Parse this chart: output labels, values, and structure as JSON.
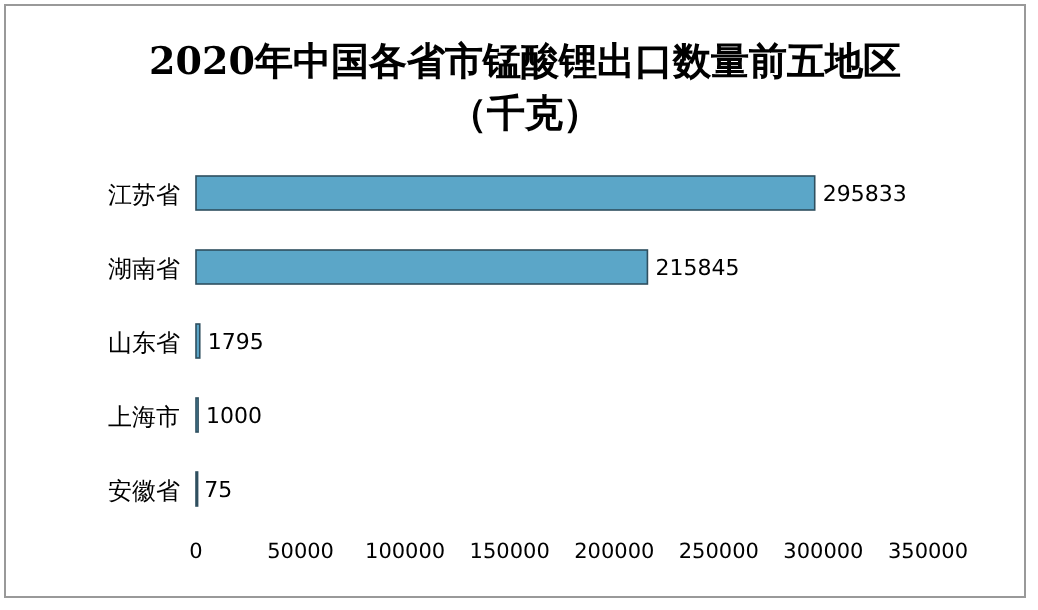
{
  "chart_data": {
    "type": "bar",
    "orientation": "horizontal",
    "title": "2020年中国各省市锰酸锂出口数量前五地区（千克）",
    "categories": [
      "江苏省",
      "湖南省",
      "山东省",
      "上海市",
      "安徽省"
    ],
    "values": [
      295833,
      215845,
      1795,
      1000,
      75
    ],
    "color": "#5ba6c8",
    "xlim": [
      0,
      350000
    ],
    "xticks": [
      0,
      50000,
      100000,
      150000,
      200000,
      250000,
      300000,
      350000
    ],
    "data_labels": true
  }
}
